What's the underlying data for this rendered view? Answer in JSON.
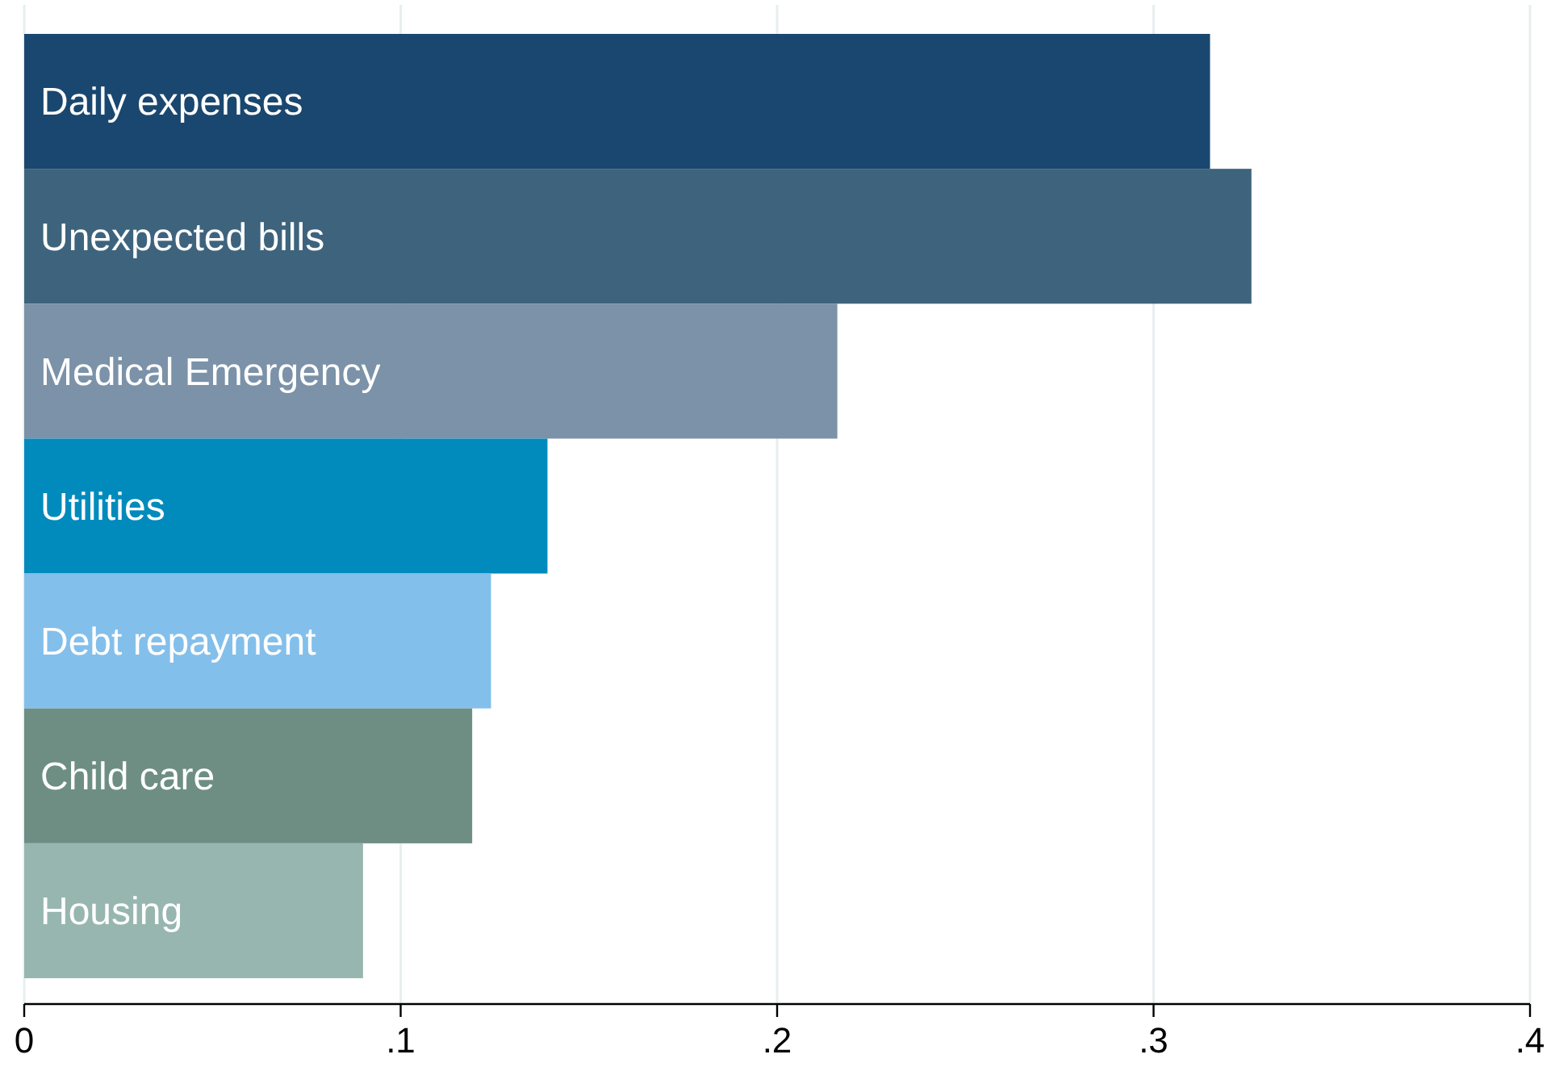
{
  "chart_data": {
    "type": "bar",
    "orientation": "horizontal",
    "categories": [
      "Daily expenses",
      "Unexpected bills",
      "Medical Emergency",
      "Utilities",
      "Debt repayment",
      "Child care",
      "Housing"
    ],
    "values": [
      0.315,
      0.326,
      0.216,
      0.139,
      0.124,
      0.119,
      0.09
    ],
    "colors": [
      "#1a476f",
      "#3e647d",
      "#7b92a8",
      "#008bbc",
      "#83bfeb",
      "#6e8e84",
      "#97b6b0"
    ],
    "xlim": [
      0,
      0.4
    ],
    "xticks": [
      0,
      {
        "value": 0.1,
        "label": ".1"
      },
      {
        "value": 0.2,
        "label": ".2"
      },
      {
        "value": 0.3,
        "label": ".3"
      },
      {
        "value": 0.4,
        "label": ".4"
      }
    ],
    "grid": "x"
  }
}
